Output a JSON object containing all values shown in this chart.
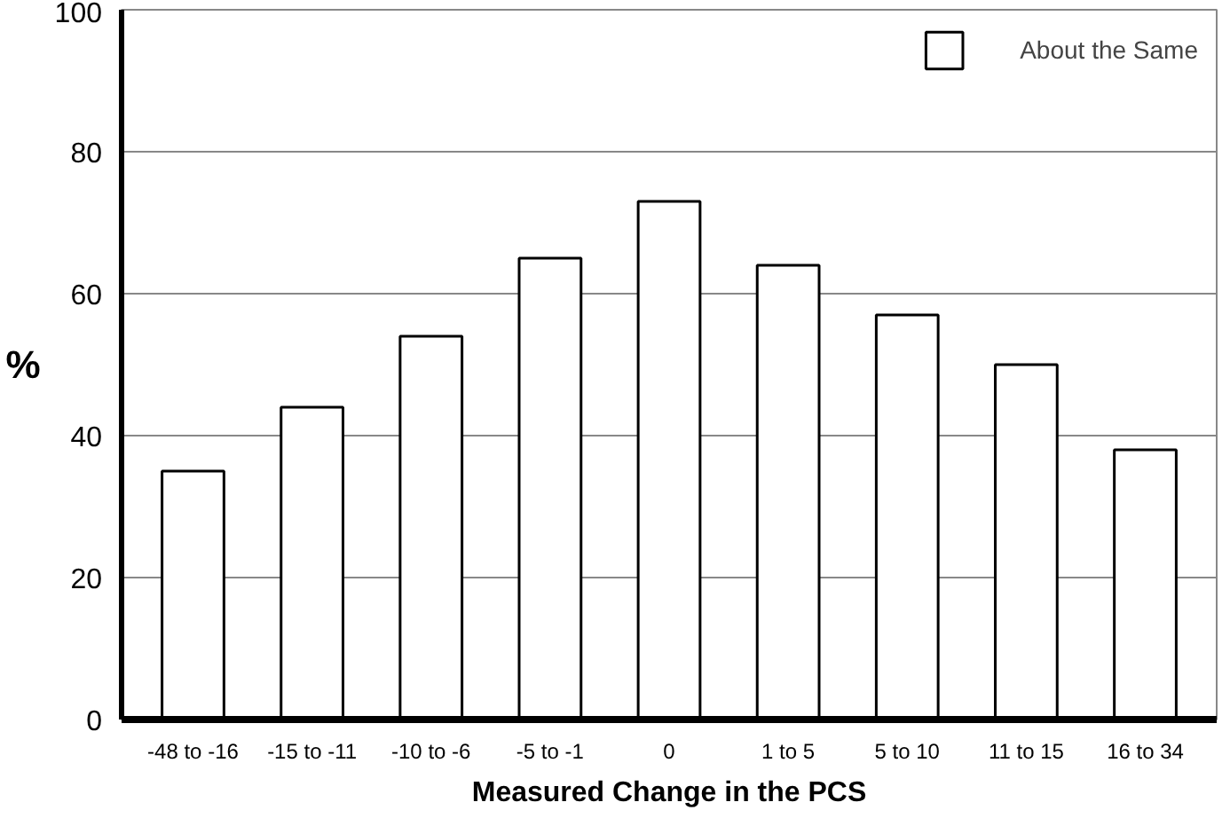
{
  "chart_data": {
    "type": "bar",
    "xlabel": "Measured Change in the PCS",
    "ylabel": "%",
    "categories": [
      "-48 to -16",
      "-15 to -11",
      "-10 to -6",
      "-5 to -1",
      "0",
      "1 to 5",
      "5 to 10",
      "11 to 15",
      "16 to 34"
    ],
    "series": [
      {
        "name": "About the Same",
        "color": "#ffffff",
        "values": [
          35,
          44,
          54,
          65,
          73,
          64,
          57,
          50,
          38
        ]
      }
    ],
    "ylim": [
      0,
      100
    ],
    "yticks": [
      0,
      20,
      40,
      60,
      80,
      100
    ],
    "grid": "y",
    "legend": "top right"
  }
}
